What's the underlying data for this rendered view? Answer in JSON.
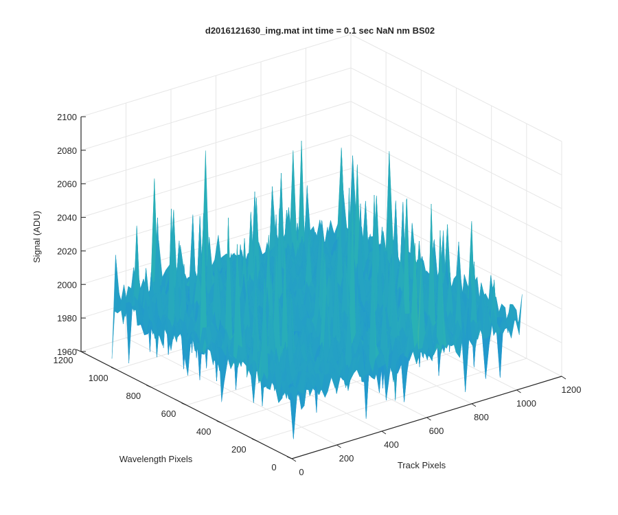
{
  "chart_data": {
    "type": "surface",
    "title": "d2016121630_img.mat int time = 0.1 sec  NaN nm BS02",
    "xlabel": "Track Pixels",
    "ylabel": "Wavelength Pixels",
    "zlabel": "Signal (ADU)",
    "xlim": [
      0,
      1200
    ],
    "ylim": [
      0,
      1200
    ],
    "zlim": [
      1960,
      2100
    ],
    "xticks": [
      "0",
      "200",
      "400",
      "600",
      "800",
      "1000",
      "1200"
    ],
    "yticks": [
      "0",
      "200",
      "400",
      "600",
      "800",
      "1000",
      "1200"
    ],
    "zticks": [
      "1960",
      "1980",
      "2000",
      "2020",
      "2040",
      "2060",
      "2080",
      "2100"
    ],
    "data_extent": {
      "x": [
        0,
        1024
      ],
      "y": [
        0,
        1024
      ]
    },
    "baseline_signal": 2000,
    "noise_range": [
      1965,
      2090
    ],
    "colormap": "parula",
    "grid": true,
    "colors": {
      "low": "#1f8ed6",
      "mid": "#2ab4b2",
      "high": "#c9c84a",
      "axis": "#262626",
      "grid": "#e6e6e6"
    }
  }
}
